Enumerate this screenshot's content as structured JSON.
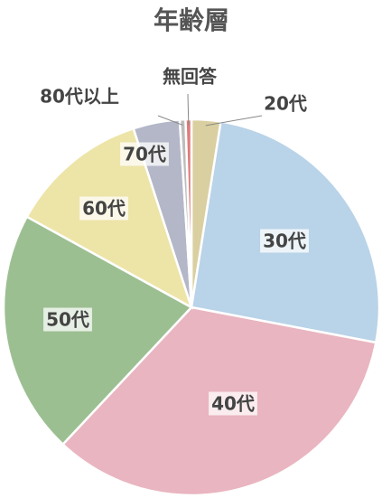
{
  "chart_data": {
    "type": "pie",
    "title": "年齢層",
    "categories": [
      "20代",
      "30代",
      "40代",
      "50代",
      "60代",
      "70代",
      "80代以上",
      "無回答"
    ],
    "values": [
      2.5,
      25.5,
      34,
      21,
      12,
      4,
      0.5,
      0.5
    ],
    "colors": [
      "#d9cfa0",
      "#b9d3e8",
      "#e9b5c0",
      "#9cbf92",
      "#ede4a8",
      "#b3b7c8",
      "#bdbdbd",
      "#e07c7c"
    ]
  }
}
